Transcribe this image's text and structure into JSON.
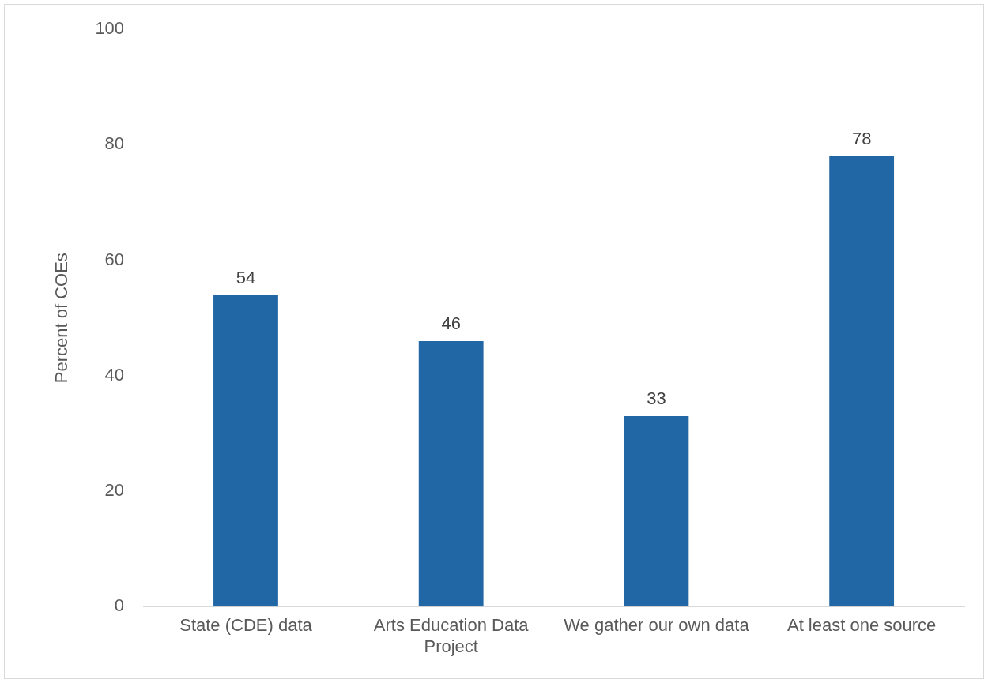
{
  "chart_data": {
    "type": "bar",
    "ylabel": "Percent of COEs",
    "categories": [
      "State (CDE) data",
      "Arts Education Data Project",
      "We gather our own data",
      "At least one source"
    ],
    "values": [
      54,
      46,
      33,
      78
    ],
    "color": "#2166a5",
    "ylim": [
      0,
      100
    ],
    "yticks": [
      0,
      20,
      40,
      60,
      80,
      100
    ],
    "grid": false,
    "legend": false,
    "data_labels": true
  }
}
